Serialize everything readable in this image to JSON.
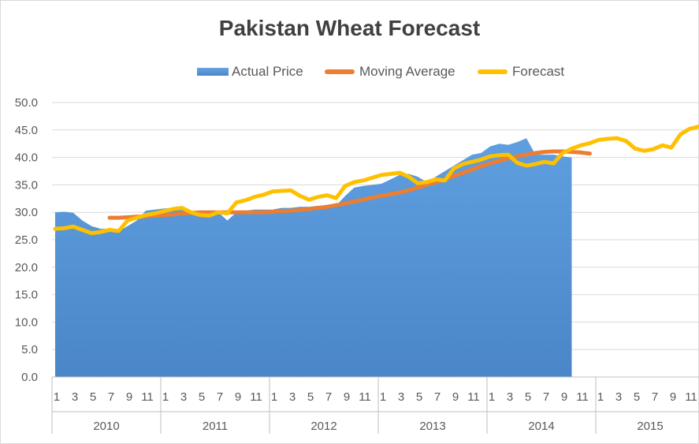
{
  "chart_data": {
    "type": "area+line",
    "title": "Pakistan Wheat Forecast",
    "xlabel": "",
    "ylabel": "",
    "ylim": [
      0,
      50
    ],
    "yticks": [
      "0.0",
      "5.0",
      "10.0",
      "15.0",
      "20.0",
      "25.0",
      "30.0",
      "35.0",
      "40.0",
      "45.0",
      "50.0"
    ],
    "years": [
      "2010",
      "2011",
      "2012",
      "2013",
      "2014",
      "2015"
    ],
    "month_ticks": [
      "1",
      "3",
      "5",
      "7",
      "9",
      "11"
    ],
    "grid": true,
    "legend_position": "top",
    "series": [
      {
        "name": "Actual Price",
        "kind": "area",
        "color": "#5b9bd5",
        "start_month_index": 0,
        "values": [
          30.0,
          30.1,
          29.9,
          28.5,
          27.5,
          27.0,
          27.0,
          26.5,
          27.5,
          28.5,
          30.3,
          30.5,
          30.7,
          30.8,
          30.8,
          30.0,
          30.0,
          29.5,
          30.0,
          28.5,
          30.0,
          30.3,
          30.5,
          30.5,
          30.5,
          30.8,
          30.8,
          31.0,
          31.0,
          31.2,
          30.8,
          31.2,
          33.0,
          34.5,
          34.8,
          35.0,
          35.2,
          36.0,
          36.8,
          37.0,
          36.5,
          35.5,
          36.5,
          37.5,
          38.5,
          39.5,
          40.5,
          40.8,
          42.0,
          42.5,
          42.3,
          42.8,
          43.5,
          40.5,
          40.5,
          40.5,
          40.2,
          40.0
        ]
      },
      {
        "name": "Moving Average",
        "kind": "line",
        "color": "#ed7d31",
        "start_month_index": 6,
        "values": [
          29.0,
          29.0,
          29.1,
          29.2,
          29.3,
          29.4,
          29.5,
          29.6,
          29.8,
          29.9,
          30.0,
          30.0,
          30.0,
          30.0,
          30.0,
          30.0,
          30.0,
          30.0,
          30.1,
          30.2,
          30.3,
          30.4,
          30.6,
          30.8,
          31.0,
          31.3,
          31.6,
          32.0,
          32.3,
          32.7,
          33.0,
          33.3,
          33.6,
          34.0,
          34.5,
          35.0,
          35.5,
          36.0,
          36.6,
          37.2,
          37.8,
          38.4,
          38.9,
          39.4,
          39.8,
          40.2,
          40.5,
          40.8,
          41.0,
          41.1,
          41.1,
          41.0,
          40.9,
          40.7
        ]
      },
      {
        "name": "Forecast",
        "kind": "line",
        "color": "#ffc000",
        "start_month_index": 0,
        "values": [
          27.0,
          27.1,
          27.4,
          26.8,
          26.2,
          26.4,
          26.8,
          26.6,
          28.5,
          29.0,
          29.5,
          29.8,
          30.2,
          30.6,
          30.8,
          30.0,
          29.5,
          29.4,
          30.0,
          29.8,
          31.8,
          32.2,
          32.8,
          33.2,
          33.8,
          33.9,
          34.0,
          33.0,
          32.3,
          32.8,
          33.1,
          32.6,
          34.8,
          35.5,
          35.8,
          36.3,
          36.8,
          37.0,
          37.2,
          36.5,
          35.3,
          35.5,
          36.0,
          35.8,
          38.0,
          38.8,
          39.2,
          39.6,
          40.2,
          40.4,
          40.5,
          39.0,
          38.5,
          38.8,
          39.2,
          38.9,
          40.8,
          41.6,
          42.2,
          42.6,
          43.2,
          43.4,
          43.5,
          43.0,
          41.6,
          41.2,
          41.5,
          42.2,
          41.8,
          44.2,
          45.2,
          45.6,
          46.2
        ]
      }
    ]
  }
}
